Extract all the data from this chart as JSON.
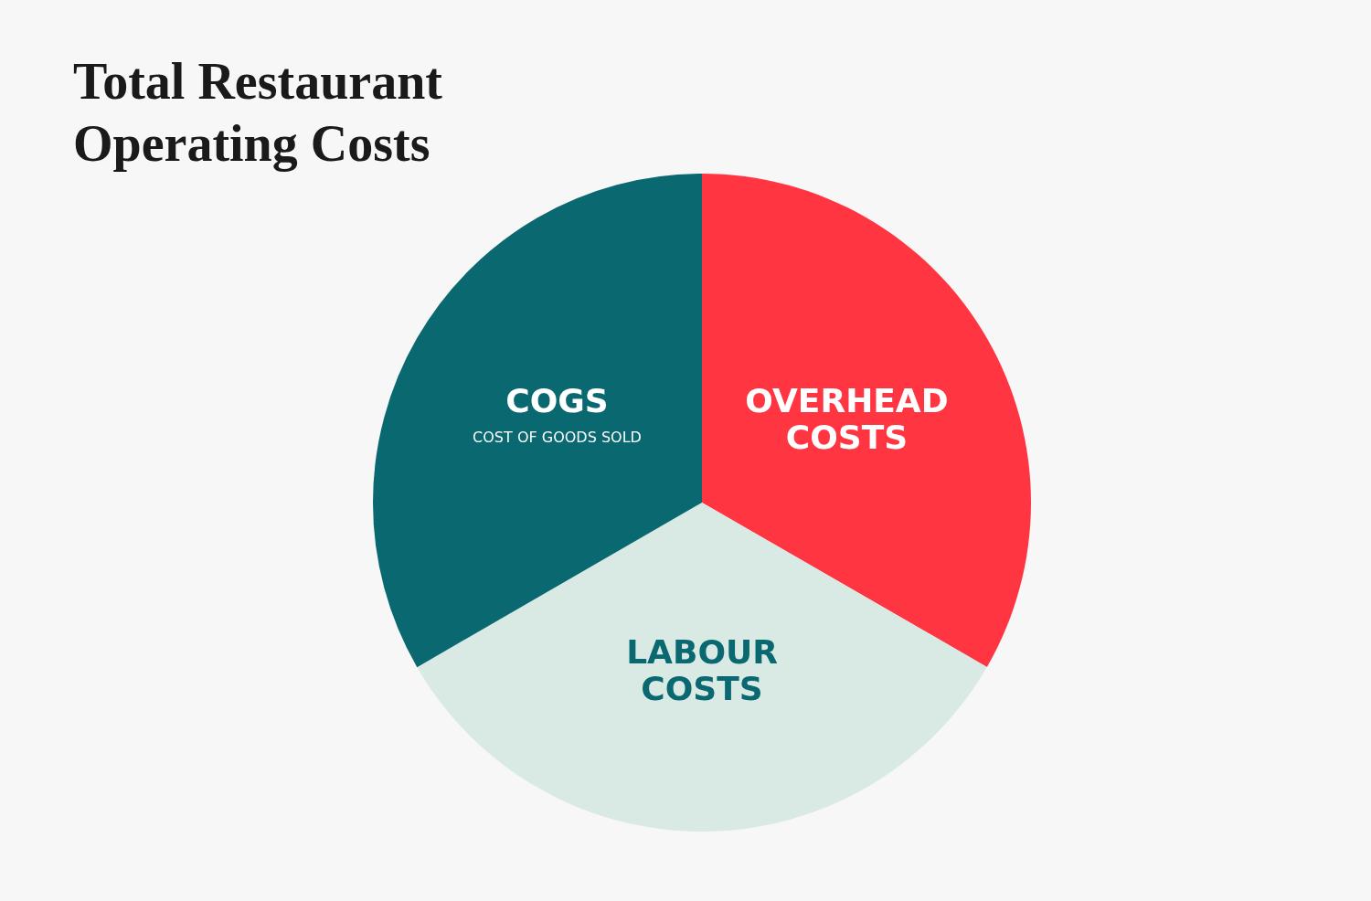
{
  "chart_data": {
    "type": "pie",
    "title": "Total Restaurant Operating Costs",
    "categories": [
      "OVERHEAD COSTS",
      "LABOUR COSTS",
      "COGS"
    ],
    "annotations": [
      {
        "text": "COST OF GOODS SOLD",
        "x": "COGS"
      }
    ],
    "values": [
      33.33,
      33.33,
      33.34
    ],
    "colors": [
      "#ff3641",
      "#d9eae5",
      "#0a6870"
    ],
    "legend": false
  }
}
